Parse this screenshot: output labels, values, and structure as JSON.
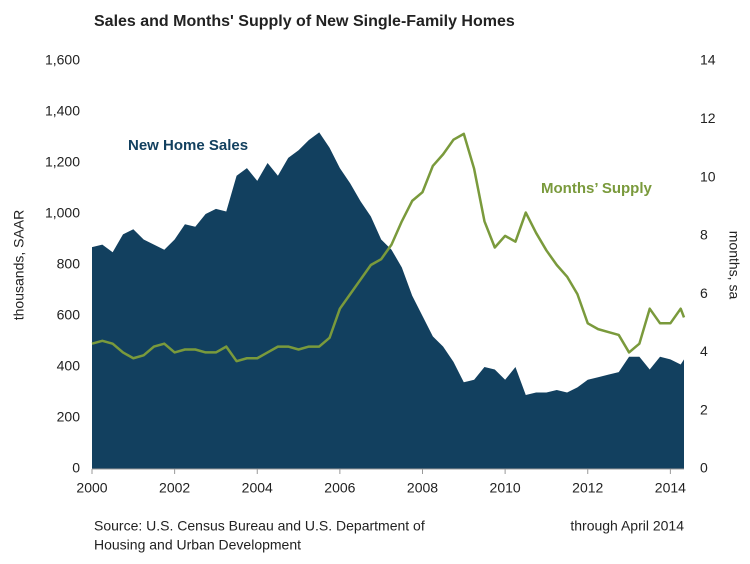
{
  "chart_data": {
    "type": "area-line",
    "title": "Sales and Months' Supply of New Single-Family Homes",
    "ylabel": "thousands, SAAR",
    "y2label": "months, sa",
    "annotations": [
      "New Home Sales",
      "Months’ Supply"
    ],
    "source": [
      "Source: U.S. Census  Bureau and U.S. Department of",
      "Housing and Urban Development"
    ],
    "note": "through April 2014",
    "x": [
      2000,
      2000.25,
      2000.5,
      2000.75,
      2001,
      2001.25,
      2001.5,
      2001.75,
      2002,
      2002.25,
      2002.5,
      2002.75,
      2003,
      2003.25,
      2003.5,
      2003.75,
      2004,
      2004.25,
      2004.5,
      2004.75,
      2005,
      2005.25,
      2005.5,
      2005.75,
      2006,
      2006.25,
      2006.5,
      2006.75,
      2007,
      2007.25,
      2007.5,
      2007.75,
      2008,
      2008.25,
      2008.5,
      2008.75,
      2009,
      2009.25,
      2009.5,
      2009.75,
      2010,
      2010.25,
      2010.5,
      2010.75,
      2011,
      2011.25,
      2011.5,
      2011.75,
      2012,
      2012.25,
      2012.5,
      2012.75,
      2013,
      2013.25,
      2013.5,
      2013.75,
      2014,
      2014.25,
      2014.33
    ],
    "series": [
      {
        "name": "New Home Sales",
        "color": "#12405f",
        "kind": "area",
        "values": [
          870,
          880,
          850,
          920,
          940,
          900,
          880,
          860,
          900,
          960,
          950,
          1000,
          1020,
          1010,
          1150,
          1180,
          1130,
          1200,
          1150,
          1220,
          1250,
          1290,
          1320,
          1260,
          1180,
          1120,
          1050,
          990,
          900,
          860,
          790,
          680,
          600,
          520,
          480,
          420,
          340,
          350,
          400,
          390,
          350,
          400,
          290,
          300,
          300,
          310,
          300,
          320,
          350,
          360,
          370,
          380,
          440,
          440,
          390,
          440,
          430,
          410,
          430
        ]
      },
      {
        "name": "Months’ Supply",
        "color": "#7a9a3c",
        "kind": "line",
        "axis": "y2",
        "values": [
          4.3,
          4.4,
          4.3,
          4.0,
          3.8,
          3.9,
          4.2,
          4.3,
          4.0,
          4.1,
          4.1,
          4.0,
          4.0,
          4.2,
          3.7,
          3.8,
          3.8,
          4.0,
          4.2,
          4.2,
          4.1,
          4.2,
          4.2,
          4.5,
          5.5,
          6.0,
          6.5,
          7.0,
          7.2,
          7.7,
          8.5,
          9.2,
          9.5,
          10.4,
          10.8,
          11.3,
          11.5,
          10.3,
          8.5,
          7.6,
          8.0,
          7.8,
          8.8,
          8.1,
          7.5,
          7.0,
          6.6,
          6.0,
          5.0,
          4.8,
          4.7,
          4.6,
          4.0,
          4.3,
          5.5,
          5.0,
          5.0,
          5.5,
          5.2
        ]
      }
    ],
    "xlim": [
      2000,
      2014.33
    ],
    "xticks": [
      2000,
      2002,
      2004,
      2006,
      2008,
      2010,
      2012,
      2014
    ],
    "ylim": [
      0,
      1600
    ],
    "yticks": [
      0,
      200,
      400,
      600,
      800,
      {
        "value": 1000,
        "label": "1,000"
      },
      {
        "value": 1200,
        "label": "1,200"
      },
      {
        "value": 1400,
        "label": "1,400"
      },
      {
        "value": 1600,
        "label": "1,600"
      }
    ],
    "y2lim": [
      0,
      14
    ],
    "y2ticks": [
      0,
      2,
      4,
      6,
      8,
      10,
      12,
      14
    ]
  }
}
